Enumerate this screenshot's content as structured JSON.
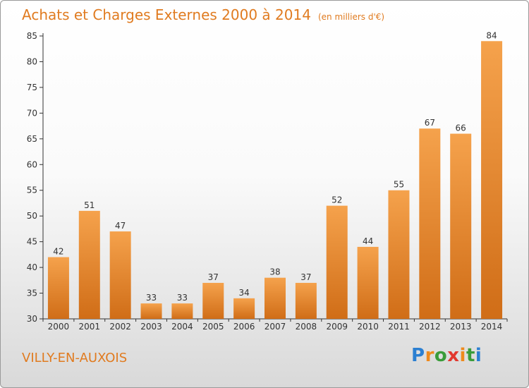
{
  "header": {
    "title": "Achats et Charges Externes 2000 à 2014",
    "subtitle": "(en milliers d'€)"
  },
  "footer": {
    "commune": "VILLY-EN-AUXOIS",
    "logo": "Proxiti"
  },
  "colors": {
    "accent": "#e07b20",
    "bar_top": "#f5a24c",
    "bar_bottom": "#d06d17"
  },
  "chart_data": {
    "type": "bar",
    "title": "Achats et Charges Externes 2000 à 2014",
    "subtitle": "(en milliers d'€)",
    "xlabel": "",
    "ylabel": "",
    "categories": [
      "2000",
      "2001",
      "2002",
      "2003",
      "2004",
      "2005",
      "2006",
      "2007",
      "2008",
      "2009",
      "2010",
      "2011",
      "2012",
      "2013",
      "2014"
    ],
    "values": [
      42,
      51,
      47,
      33,
      33,
      37,
      34,
      38,
      37,
      52,
      44,
      55,
      67,
      66,
      84
    ],
    "ylim": [
      30,
      85
    ],
    "yticks": [
      30,
      35,
      40,
      45,
      50,
      55,
      60,
      65,
      70,
      75,
      80,
      85
    ],
    "grid": false,
    "legend": "none"
  }
}
